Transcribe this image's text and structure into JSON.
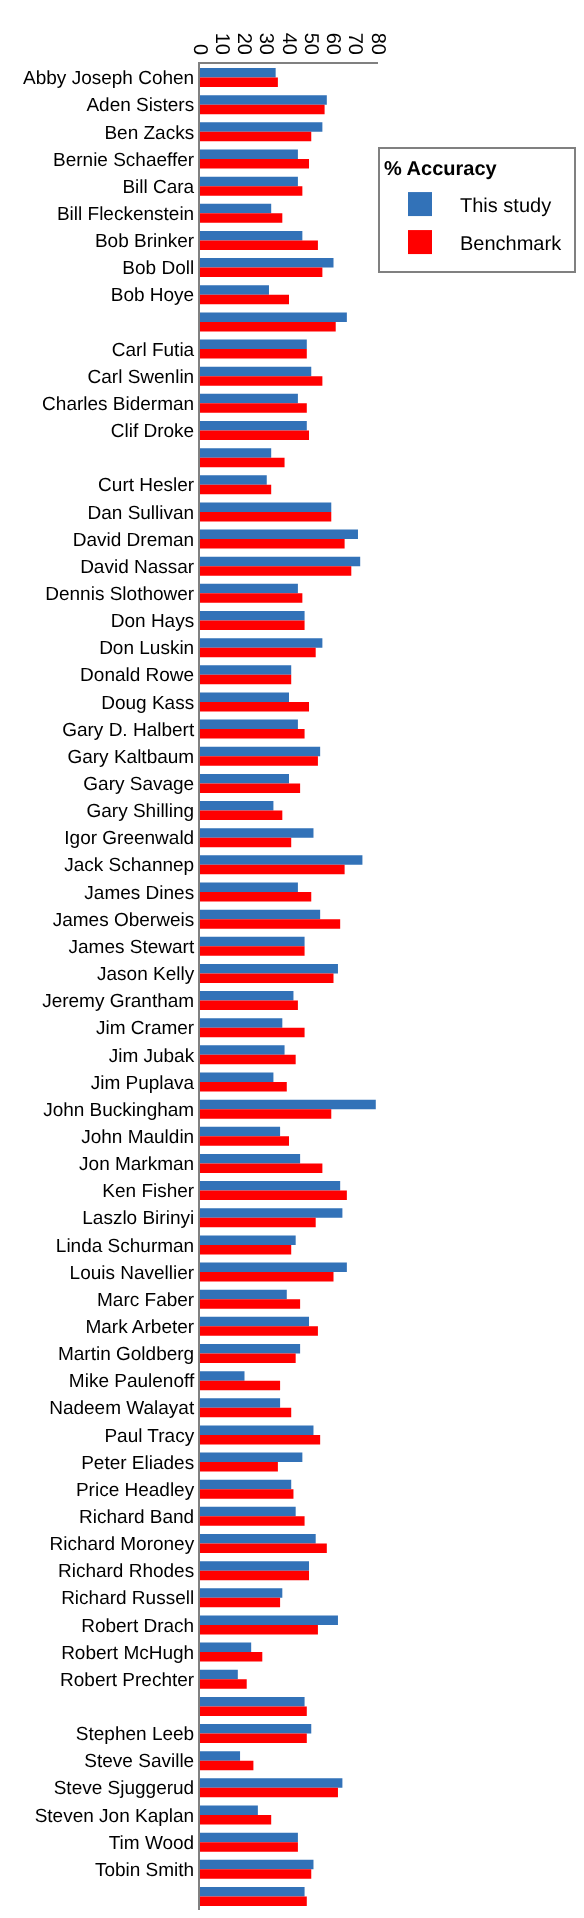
{
  "chart_data": {
    "type": "bar",
    "orientation": "horizontal",
    "legend_title": "% Accuracy",
    "legend": "right",
    "grid": false,
    "categories": [
      "Abby Joseph Cohen",
      "Aden Sisters",
      "Ben Zacks",
      "Bernie Schaeffer",
      "Bill Cara",
      "Bill Fleckenstein",
      "Bob Brinker",
      "Bob Doll",
      "Bob Hoye",
      null,
      "Carl Futia",
      "Carl Swenlin",
      "Charles Biderman",
      "Clif Droke",
      null,
      "Curt Hesler",
      "Dan Sullivan",
      "David Dreman",
      "David Nassar",
      "Dennis Slothower",
      "Don Hays",
      "Don Luskin",
      "Donald Rowe",
      "Doug Kass",
      "Gary D. Halbert",
      "Gary Kaltbaum",
      "Gary Savage",
      "Gary Shilling",
      "Igor Greenwald",
      "Jack Schannep",
      "James Dines",
      "James Oberweis",
      "James Stewart",
      "Jason Kelly",
      "Jeremy Grantham",
      "Jim Cramer",
      "Jim Jubak",
      "Jim Puplava",
      "John Buckingham",
      "John Mauldin",
      "Jon Markman",
      "Ken Fisher",
      "Laszlo Birinyi",
      "Linda Schurman",
      "Louis Navellier",
      "Marc Faber",
      "Mark Arbeter",
      "Martin Goldberg",
      "Mike Paulenoff",
      "Nadeem Walayat",
      "Paul Tracy",
      "Peter Eliades",
      "Price Headley",
      "Richard Band",
      "Richard Moroney",
      "Richard Rhodes",
      "Richard Russell",
      "Robert Drach",
      "Robert McHugh",
      "Robert Prechter",
      null,
      "Stephen Leeb",
      "Steve Saville",
      "Steve Sjuggerud",
      "Steven Jon Kaplan",
      "Tim Wood",
      "Tobin Smith",
      null
    ],
    "series": [
      {
        "name": "This study",
        "color": "#3272b8",
        "values": [
          34,
          57,
          55,
          44,
          44,
          32,
          46,
          60,
          31,
          66,
          48,
          50,
          44,
          48,
          32,
          30,
          59,
          71,
          72,
          44,
          47,
          55,
          41,
          40,
          44,
          54,
          40,
          33,
          51,
          73,
          44,
          54,
          47,
          62,
          42,
          37,
          38,
          33,
          79,
          36,
          45,
          63,
          64,
          43,
          66,
          39,
          49,
          45,
          20,
          36,
          51,
          46,
          41,
          43,
          52,
          49,
          37,
          62,
          23,
          17,
          47,
          50,
          18,
          64,
          26,
          44,
          51,
          47
        ]
      },
      {
        "name": "Benchmark",
        "color": "#ff0000",
        "values": [
          35,
          56,
          50,
          49,
          46,
          37,
          53,
          55,
          40,
          61,
          48,
          55,
          48,
          49,
          38,
          32,
          59,
          65,
          68,
          46,
          47,
          52,
          41,
          49,
          47,
          53,
          45,
          37,
          41,
          65,
          50,
          63,
          47,
          60,
          44,
          47,
          43,
          39,
          59,
          40,
          55,
          66,
          52,
          41,
          60,
          45,
          53,
          43,
          36,
          41,
          54,
          35,
          42,
          47,
          57,
          49,
          36,
          53,
          28,
          21,
          48,
          48,
          24,
          62,
          32,
          44,
          50,
          48
        ]
      }
    ],
    "xlim": [
      0,
      80
    ],
    "xticks": [
      0,
      10,
      20,
      30,
      40,
      50,
      60,
      70,
      80
    ]
  }
}
